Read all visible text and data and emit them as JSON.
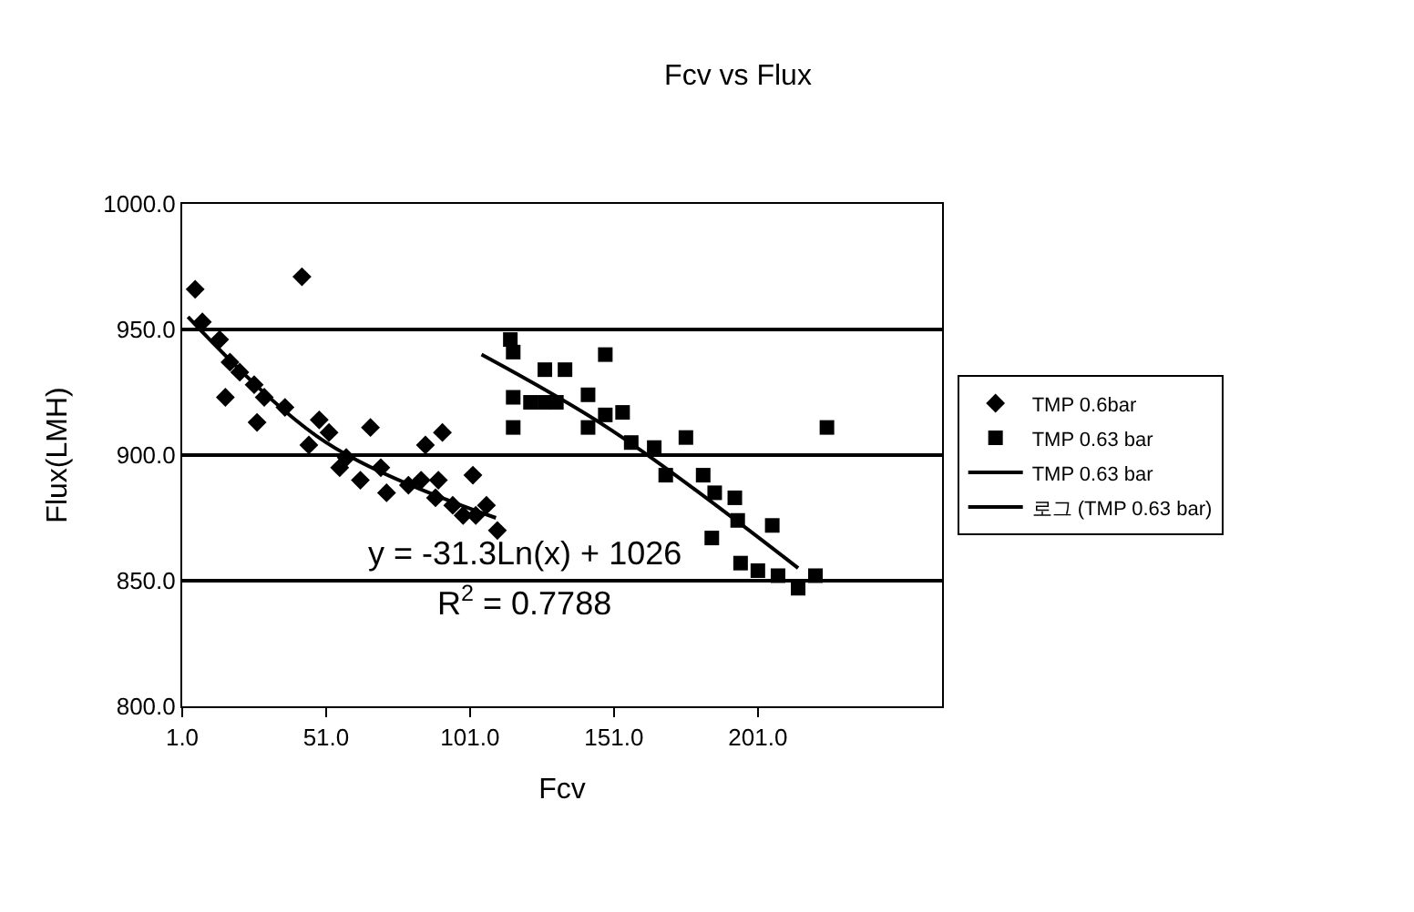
{
  "chart_data": {
    "type": "scatter",
    "title": "Fcv vs Flux",
    "xlabel": "Fcv",
    "ylabel": "Flux(LMH)",
    "xlim": [
      1,
      265
    ],
    "ylim": [
      800,
      1000
    ],
    "xticks": [
      {
        "value": 1,
        "label": "1.0"
      },
      {
        "value": 51,
        "label": "51.0"
      },
      {
        "value": 101,
        "label": "101.0"
      },
      {
        "value": 151,
        "label": "151.0"
      },
      {
        "value": 201,
        "label": "201.0"
      }
    ],
    "yticks": [
      {
        "value": 800,
        "label": "800.0"
      },
      {
        "value": 850,
        "label": "850.0"
      },
      {
        "value": 900,
        "label": "900.0"
      },
      {
        "value": 950,
        "label": "950.0"
      },
      {
        "value": 1000,
        "label": "1000.0"
      }
    ],
    "grid": "y",
    "legend": "right",
    "annotations": [
      "y = -31.3Ln(x) + 1026",
      "R$^{2}$ = 0.7788"
    ],
    "series": [
      {
        "name": "TMP 0.6bar",
        "marker": "diamond",
        "color": "#000000",
        "x": [
          5.5,
          8,
          14,
          17.6,
          16,
          21,
          26,
          29.5,
          27,
          42.6,
          36.7,
          45,
          48.6,
          52,
          55.7,
          58,
          62.9,
          66.4,
          70,
          72,
          79.6,
          84,
          85.5,
          89,
          90,
          91.4,
          95,
          98.6,
          102,
          103,
          106.7,
          110.5
        ],
        "values": [
          966,
          953,
          946,
          937,
          923,
          933,
          928,
          923,
          913,
          971,
          919,
          904,
          914,
          909,
          895,
          899,
          890,
          911,
          895,
          885,
          888,
          890,
          904,
          883,
          890,
          909,
          880,
          876,
          892,
          876,
          880,
          870
        ]
      },
      {
        "name": "TMP 0.63 bar",
        "marker": "square",
        "color": "#000000",
        "x": [
          115,
          116,
          116,
          116,
          122,
          127,
          127,
          131,
          134,
          142,
          142,
          148,
          148,
          154,
          157,
          165,
          169,
          176,
          182,
          185,
          186,
          193,
          194,
          195,
          201,
          206,
          208,
          215,
          221,
          225
        ],
        "values": [
          946,
          941,
          923,
          911,
          921,
          921,
          934,
          921,
          934,
          924,
          911,
          940,
          916,
          917,
          905,
          903,
          892,
          907,
          892,
          867,
          885,
          883,
          874,
          857,
          854,
          872,
          852,
          847,
          852,
          911
        ]
      },
      {
        "name": "TMP 0.63 bar",
        "type": "line",
        "marker": "none",
        "color": "#000000",
        "x": [
          3,
          51,
          110
        ],
        "values": [
          955,
          905,
          875
        ]
      },
      {
        "name": "로그 (TMP 0.63 bar)",
        "type": "line",
        "marker": "none",
        "color": "#000000",
        "x": [
          105,
          150,
          215
        ],
        "values": [
          940,
          910,
          855
        ]
      }
    ]
  }
}
